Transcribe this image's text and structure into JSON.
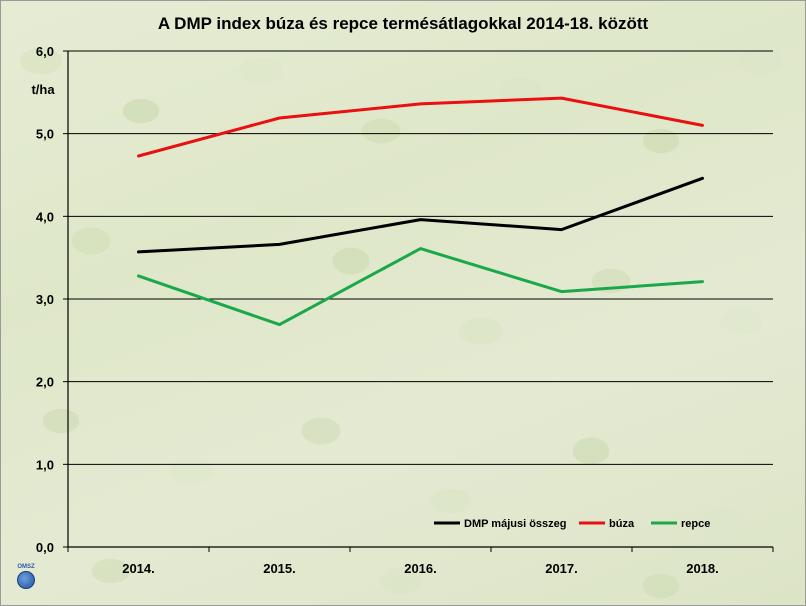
{
  "chart_data": {
    "type": "line",
    "title": "A DMP index búza és repce termésátlagokkal 2014-18. között",
    "ylabel": "t/ha",
    "xlabel": "",
    "categories": [
      "2014.",
      "2015.",
      "2016.",
      "2017.",
      "2018."
    ],
    "ylim": [
      0,
      6
    ],
    "yticks": [
      0,
      1,
      2,
      3,
      4,
      5,
      6
    ],
    "ytick_labels": [
      "0,0",
      "1,0",
      "2,0",
      "3,0",
      "4,0",
      "5,0",
      "6,0"
    ],
    "grid": true,
    "legend_position": "bottom-right",
    "series": [
      {
        "name": "DMP májusi összeg",
        "color": "#000000",
        "values": [
          3.57,
          3.66,
          3.96,
          3.84,
          4.46
        ]
      },
      {
        "name": "búza",
        "color": "#e81010",
        "values": [
          4.73,
          5.19,
          5.36,
          5.43,
          5.1
        ]
      },
      {
        "name": "repce",
        "color": "#1aa84a",
        "values": [
          3.28,
          2.69,
          3.61,
          3.09,
          3.21
        ]
      }
    ]
  },
  "logo": {
    "text": "OMSZ"
  }
}
